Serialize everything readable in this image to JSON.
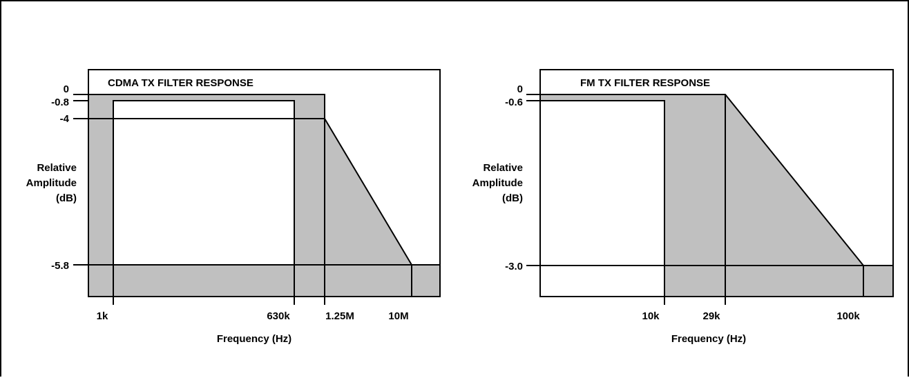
{
  "colors": {
    "fill": "#c0c0c0",
    "line": "#000000",
    "background": "#ffffff"
  },
  "chart_data": [
    {
      "type": "area",
      "title": "CDMA TX FILTER RESPONSE",
      "xlabel": "Frequency (Hz)",
      "ylabel": [
        "Relative",
        "Amplitude",
        "(dB)"
      ],
      "x_ticks": [
        "1k",
        "630k",
        "1.25M",
        "10M"
      ],
      "y_ticks": [
        "0",
        "-0.8",
        "-4",
        "-5.8"
      ],
      "upper_limit": [
        {
          "x": "1.25M",
          "y": "0"
        },
        {
          "x": "1.25M",
          "y": "-4"
        },
        {
          "x": "10M",
          "y": "-5.8"
        }
      ],
      "lower_limit": [
        {
          "x": "1k",
          "y": "-0.8"
        },
        {
          "x": "630k",
          "y": "-0.8"
        }
      ]
    },
    {
      "type": "area",
      "title": "FM TX FILTER RESPONSE",
      "xlabel": "Frequency (Hz)",
      "ylabel": [
        "Relative",
        "Amplitude",
        "(dB)"
      ],
      "x_ticks": [
        "10k",
        "29k",
        "100k"
      ],
      "y_ticks": [
        "0",
        "-0.6",
        "-3.0"
      ],
      "upper_limit": [
        {
          "x": "29k",
          "y": "0"
        },
        {
          "x": "100k",
          "y": "-3.0"
        }
      ],
      "lower_limit": [
        {
          "x": "10k",
          "y": "-0.6"
        }
      ]
    }
  ]
}
